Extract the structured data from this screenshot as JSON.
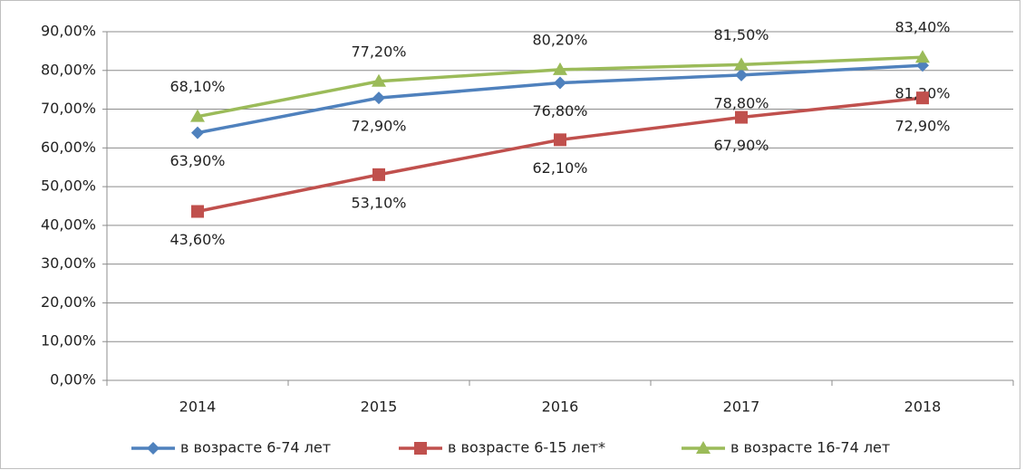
{
  "chart_data": {
    "type": "line",
    "categories": [
      "2014",
      "2015",
      "2016",
      "2017",
      "2018"
    ],
    "series": [
      {
        "name": "в возрасте 6-74 лет",
        "color": "#4f81bd",
        "marker": "diamond",
        "label_position": "below",
        "values": [
          63.9,
          72.9,
          76.8,
          78.8,
          81.3
        ],
        "value_labels": [
          "63,90%",
          "72,90%",
          "76,80%",
          "78,80%",
          "81,30%"
        ]
      },
      {
        "name": "в возрасте 6-15 лет*",
        "color": "#c0504d",
        "marker": "square",
        "label_position": "below",
        "values": [
          43.6,
          53.1,
          62.1,
          67.9,
          72.9
        ],
        "value_labels": [
          "43,60%",
          "53,10%",
          "62,10%",
          "67,90%",
          "72,90%"
        ]
      },
      {
        "name": "в возрасте 16-74 лет",
        "color": "#9bbb59",
        "marker": "triangle",
        "label_position": "above",
        "values": [
          68.1,
          77.2,
          80.2,
          81.5,
          83.4
        ],
        "value_labels": [
          "68,10%",
          "77,20%",
          "80,20%",
          "81,50%",
          "83,40%"
        ]
      }
    ],
    "ylim": [
      0,
      90
    ],
    "yticks": [
      {
        "value": 0,
        "label": "0,00%"
      },
      {
        "value": 10,
        "label": "10,00%"
      },
      {
        "value": 20,
        "label": "20,00%"
      },
      {
        "value": 30,
        "label": "30,00%"
      },
      {
        "value": 40,
        "label": "40,00%"
      },
      {
        "value": 50,
        "label": "50,00%"
      },
      {
        "value": 60,
        "label": "60,00%"
      },
      {
        "value": 70,
        "label": "70,00%"
      },
      {
        "value": 80,
        "label": "80,00%"
      },
      {
        "value": 90,
        "label": "90,00%"
      }
    ],
    "grid": true,
    "legend": "bottom"
  }
}
